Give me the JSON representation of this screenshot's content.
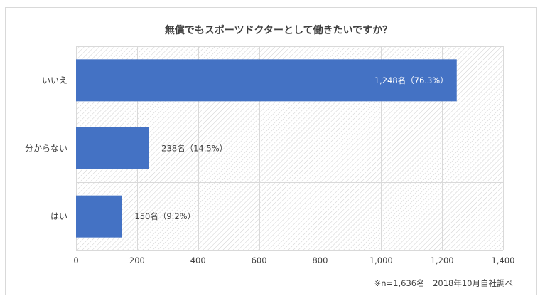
{
  "chart_data": {
    "type": "bar",
    "orientation": "horizontal",
    "title": "無償でもスポーツドクターとして働きたいですか？",
    "categories": [
      "いいえ",
      "分からない",
      "はい"
    ],
    "values": [
      1248,
      238,
      150
    ],
    "data_labels": [
      "1,248名（76.3%）",
      "238名（14.5%）",
      "150名（9.2%）"
    ],
    "xlim": [
      0,
      1400
    ],
    "x_ticks": [
      0,
      200,
      400,
      600,
      800,
      1000,
      1200,
      1400
    ],
    "x_tick_labels": [
      "0",
      "200",
      "400",
      "600",
      "800",
      "1,000",
      "1,200",
      "1,400"
    ],
    "grid": true,
    "note": "※n=1,636名　2018年10月自社調べ",
    "colors": {
      "bar": "#4472C4",
      "grid": "#d9d9d9",
      "hatch": "#c8c8c8",
      "frame": "#d9d9d9",
      "text": "#404040",
      "label_on_bar": "#ffffff"
    }
  }
}
